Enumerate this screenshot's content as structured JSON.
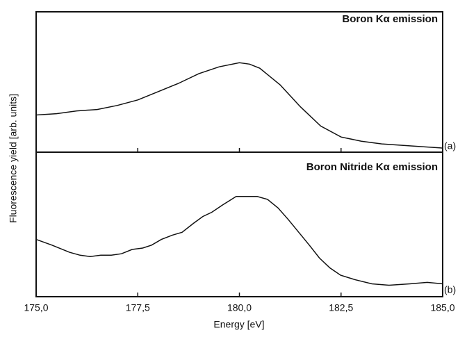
{
  "chart_data": [
    {
      "type": "line",
      "title": "Boron Kα emission",
      "panel_label": "(a)",
      "ylabel": "Fluorescence yield [arb. units]",
      "xlim": [
        175,
        185
      ],
      "ylim": [
        0,
        1
      ],
      "color": "#111111",
      "x": [
        175.0,
        175.5,
        176.0,
        176.5,
        177.0,
        177.5,
        178.0,
        178.5,
        179.0,
        179.5,
        180.0,
        180.25,
        180.5,
        181.0,
        181.5,
        182.0,
        182.5,
        183.0,
        183.5,
        184.0,
        184.5,
        185.0
      ],
      "values": [
        0.27,
        0.28,
        0.3,
        0.31,
        0.34,
        0.38,
        0.44,
        0.5,
        0.57,
        0.62,
        0.65,
        0.64,
        0.61,
        0.49,
        0.33,
        0.19,
        0.11,
        0.08,
        0.06,
        0.05,
        0.04,
        0.03
      ]
    },
    {
      "type": "line",
      "title": "Boron Nitride Kα emission",
      "panel_label": "(b)",
      "xlabel": "Energy [eV]",
      "xlim": [
        175,
        185
      ],
      "ylim": [
        0,
        1
      ],
      "color": "#111111",
      "xticks": [
        {
          "value": 175,
          "label": "175,0"
        },
        {
          "value": 177.5,
          "label": "177,5"
        },
        {
          "value": 180,
          "label": "180,0"
        },
        {
          "value": 182.5,
          "label": "182,5"
        },
        {
          "value": 185,
          "label": "185,0"
        }
      ],
      "x": [
        175.0,
        175.39,
        175.82,
        176.08,
        176.33,
        176.59,
        176.85,
        177.1,
        177.36,
        177.62,
        177.84,
        178.08,
        178.35,
        178.59,
        178.86,
        179.1,
        179.32,
        179.58,
        179.92,
        180.18,
        180.44,
        180.69,
        180.95,
        181.2,
        181.46,
        181.72,
        181.97,
        182.23,
        182.49,
        182.83,
        183.26,
        183.68,
        184.19,
        184.62,
        185.0
      ],
      "values": [
        0.4,
        0.36,
        0.31,
        0.29,
        0.28,
        0.29,
        0.29,
        0.3,
        0.33,
        0.34,
        0.36,
        0.4,
        0.43,
        0.45,
        0.51,
        0.56,
        0.59,
        0.64,
        0.7,
        0.7,
        0.7,
        0.68,
        0.62,
        0.54,
        0.45,
        0.36,
        0.27,
        0.2,
        0.15,
        0.12,
        0.09,
        0.08,
        0.09,
        0.1,
        0.09
      ]
    }
  ]
}
